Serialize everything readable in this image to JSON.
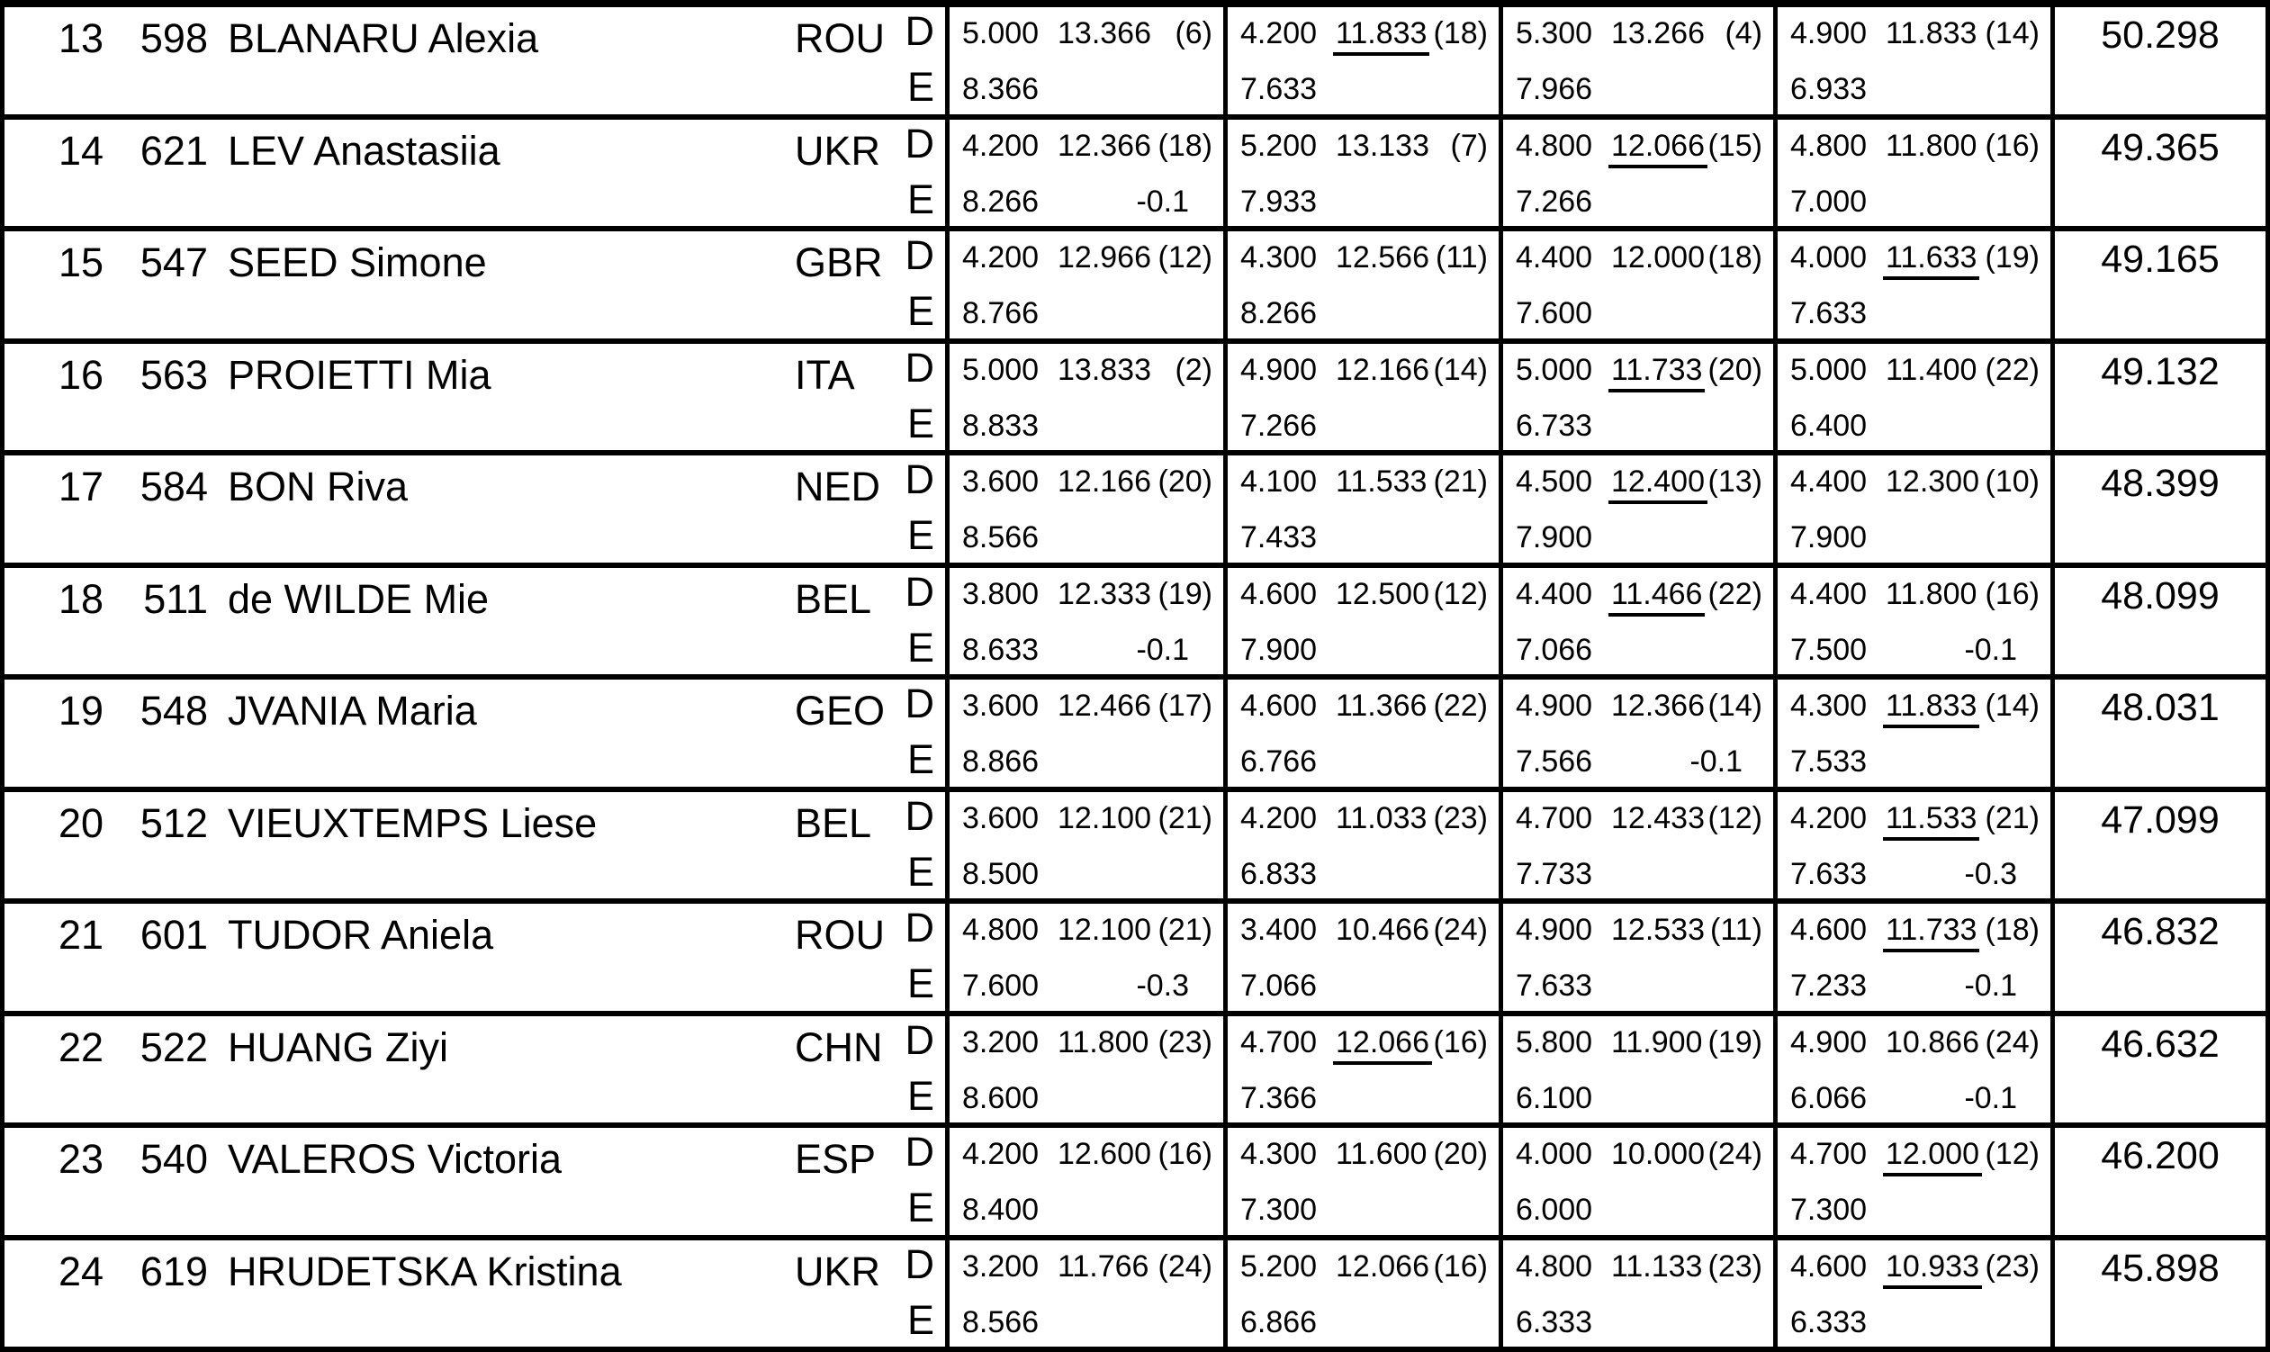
{
  "labels": {
    "d": "D",
    "e": "E"
  },
  "table": {
    "rows": [
      {
        "rank": "13",
        "bib": "598",
        "name": "BLANARU Alexia",
        "noc": "ROU",
        "total": "50.298",
        "apparatus": [
          {
            "d": "5.000",
            "score": "13.366",
            "rank_paren": "(6)",
            "e": "8.366",
            "penalty": "",
            "underlined": false
          },
          {
            "d": "4.200",
            "score": "11.833",
            "rank_paren": "(18)",
            "e": "7.633",
            "penalty": "",
            "underlined": true
          },
          {
            "d": "5.300",
            "score": "13.266",
            "rank_paren": "(4)",
            "e": "7.966",
            "penalty": "",
            "underlined": false
          },
          {
            "d": "4.900",
            "score": "11.833",
            "rank_paren": "(14)",
            "e": "6.933",
            "penalty": "",
            "underlined": false
          }
        ]
      },
      {
        "rank": "14",
        "bib": "621",
        "name": "LEV Anastasiia",
        "noc": "UKR",
        "total": "49.365",
        "apparatus": [
          {
            "d": "4.200",
            "score": "12.366",
            "rank_paren": "(18)",
            "e": "8.266",
            "penalty": "-0.1",
            "underlined": false
          },
          {
            "d": "5.200",
            "score": "13.133",
            "rank_paren": "(7)",
            "e": "7.933",
            "penalty": "",
            "underlined": false
          },
          {
            "d": "4.800",
            "score": "12.066",
            "rank_paren": "(15)",
            "e": "7.266",
            "penalty": "",
            "underlined": true
          },
          {
            "d": "4.800",
            "score": "11.800",
            "rank_paren": "(16)",
            "e": "7.000",
            "penalty": "",
            "underlined": false
          }
        ]
      },
      {
        "rank": "15",
        "bib": "547",
        "name": "SEED Simone",
        "noc": "GBR",
        "total": "49.165",
        "apparatus": [
          {
            "d": "4.200",
            "score": "12.966",
            "rank_paren": "(12)",
            "e": "8.766",
            "penalty": "",
            "underlined": false
          },
          {
            "d": "4.300",
            "score": "12.566",
            "rank_paren": "(11)",
            "e": "8.266",
            "penalty": "",
            "underlined": false
          },
          {
            "d": "4.400",
            "score": "12.000",
            "rank_paren": "(18)",
            "e": "7.600",
            "penalty": "",
            "underlined": false
          },
          {
            "d": "4.000",
            "score": "11.633",
            "rank_paren": "(19)",
            "e": "7.633",
            "penalty": "",
            "underlined": true
          }
        ]
      },
      {
        "rank": "16",
        "bib": "563",
        "name": "PROIETTI Mia",
        "noc": "ITA",
        "total": "49.132",
        "apparatus": [
          {
            "d": "5.000",
            "score": "13.833",
            "rank_paren": "(2)",
            "e": "8.833",
            "penalty": "",
            "underlined": false
          },
          {
            "d": "4.900",
            "score": "12.166",
            "rank_paren": "(14)",
            "e": "7.266",
            "penalty": "",
            "underlined": false
          },
          {
            "d": "5.000",
            "score": "11.733",
            "rank_paren": "(20)",
            "e": "6.733",
            "penalty": "",
            "underlined": true
          },
          {
            "d": "5.000",
            "score": "11.400",
            "rank_paren": "(22)",
            "e": "6.400",
            "penalty": "",
            "underlined": false
          }
        ]
      },
      {
        "rank": "17",
        "bib": "584",
        "name": "BON Riva",
        "noc": "NED",
        "total": "48.399",
        "apparatus": [
          {
            "d": "3.600",
            "score": "12.166",
            "rank_paren": "(20)",
            "e": "8.566",
            "penalty": "",
            "underlined": false
          },
          {
            "d": "4.100",
            "score": "11.533",
            "rank_paren": "(21)",
            "e": "7.433",
            "penalty": "",
            "underlined": false
          },
          {
            "d": "4.500",
            "score": "12.400",
            "rank_paren": "(13)",
            "e": "7.900",
            "penalty": "",
            "underlined": true
          },
          {
            "d": "4.400",
            "score": "12.300",
            "rank_paren": "(10)",
            "e": "7.900",
            "penalty": "",
            "underlined": false
          }
        ]
      },
      {
        "rank": "18",
        "bib": "511",
        "name": "de WILDE Mie",
        "noc": "BEL",
        "total": "48.099",
        "apparatus": [
          {
            "d": "3.800",
            "score": "12.333",
            "rank_paren": "(19)",
            "e": "8.633",
            "penalty": "-0.1",
            "underlined": false
          },
          {
            "d": "4.600",
            "score": "12.500",
            "rank_paren": "(12)",
            "e": "7.900",
            "penalty": "",
            "underlined": false
          },
          {
            "d": "4.400",
            "score": "11.466",
            "rank_paren": "(22)",
            "e": "7.066",
            "penalty": "",
            "underlined": true
          },
          {
            "d": "4.400",
            "score": "11.800",
            "rank_paren": "(16)",
            "e": "7.500",
            "penalty": "-0.1",
            "underlined": false
          }
        ]
      },
      {
        "rank": "19",
        "bib": "548",
        "name": "JVANIA Maria",
        "noc": "GEO",
        "total": "48.031",
        "apparatus": [
          {
            "d": "3.600",
            "score": "12.466",
            "rank_paren": "(17)",
            "e": "8.866",
            "penalty": "",
            "underlined": false
          },
          {
            "d": "4.600",
            "score": "11.366",
            "rank_paren": "(22)",
            "e": "6.766",
            "penalty": "",
            "underlined": false
          },
          {
            "d": "4.900",
            "score": "12.366",
            "rank_paren": "(14)",
            "e": "7.566",
            "penalty": "-0.1",
            "underlined": false
          },
          {
            "d": "4.300",
            "score": "11.833",
            "rank_paren": "(14)",
            "e": "7.533",
            "penalty": "",
            "underlined": true
          }
        ]
      },
      {
        "rank": "20",
        "bib": "512",
        "name": "VIEUXTEMPS Liese",
        "noc": "BEL",
        "total": "47.099",
        "apparatus": [
          {
            "d": "3.600",
            "score": "12.100",
            "rank_paren": "(21)",
            "e": "8.500",
            "penalty": "",
            "underlined": false
          },
          {
            "d": "4.200",
            "score": "11.033",
            "rank_paren": "(23)",
            "e": "6.833",
            "penalty": "",
            "underlined": false
          },
          {
            "d": "4.700",
            "score": "12.433",
            "rank_paren": "(12)",
            "e": "7.733",
            "penalty": "",
            "underlined": false
          },
          {
            "d": "4.200",
            "score": "11.533",
            "rank_paren": "(21)",
            "e": "7.633",
            "penalty": "-0.3",
            "underlined": true
          }
        ]
      },
      {
        "rank": "21",
        "bib": "601",
        "name": "TUDOR Aniela",
        "noc": "ROU",
        "total": "46.832",
        "apparatus": [
          {
            "d": "4.800",
            "score": "12.100",
            "rank_paren": "(21)",
            "e": "7.600",
            "penalty": "-0.3",
            "underlined": false
          },
          {
            "d": "3.400",
            "score": "10.466",
            "rank_paren": "(24)",
            "e": "7.066",
            "penalty": "",
            "underlined": false
          },
          {
            "d": "4.900",
            "score": "12.533",
            "rank_paren": "(11)",
            "e": "7.633",
            "penalty": "",
            "underlined": false
          },
          {
            "d": "4.600",
            "score": "11.733",
            "rank_paren": "(18)",
            "e": "7.233",
            "penalty": "-0.1",
            "underlined": true
          }
        ]
      },
      {
        "rank": "22",
        "bib": "522",
        "name": "HUANG Ziyi",
        "noc": "CHN",
        "total": "46.632",
        "apparatus": [
          {
            "d": "3.200",
            "score": "11.800",
            "rank_paren": "(23)",
            "e": "8.600",
            "penalty": "",
            "underlined": false
          },
          {
            "d": "4.700",
            "score": "12.066",
            "rank_paren": "(16)",
            "e": "7.366",
            "penalty": "",
            "underlined": true
          },
          {
            "d": "5.800",
            "score": "11.900",
            "rank_paren": "(19)",
            "e": "6.100",
            "penalty": "",
            "underlined": false
          },
          {
            "d": "4.900",
            "score": "10.866",
            "rank_paren": "(24)",
            "e": "6.066",
            "penalty": "-0.1",
            "underlined": false
          }
        ]
      },
      {
        "rank": "23",
        "bib": "540",
        "name": "VALEROS Victoria",
        "noc": "ESP",
        "total": "46.200",
        "apparatus": [
          {
            "d": "4.200",
            "score": "12.600",
            "rank_paren": "(16)",
            "e": "8.400",
            "penalty": "",
            "underlined": false
          },
          {
            "d": "4.300",
            "score": "11.600",
            "rank_paren": "(20)",
            "e": "7.300",
            "penalty": "",
            "underlined": false
          },
          {
            "d": "4.000",
            "score": "10.000",
            "rank_paren": "(24)",
            "e": "6.000",
            "penalty": "",
            "underlined": false
          },
          {
            "d": "4.700",
            "score": "12.000",
            "rank_paren": "(12)",
            "e": "7.300",
            "penalty": "",
            "underlined": true
          }
        ]
      },
      {
        "rank": "24",
        "bib": "619",
        "name": "HRUDETSKA Kristina",
        "noc": "UKR",
        "total": "45.898",
        "apparatus": [
          {
            "d": "3.200",
            "score": "11.766",
            "rank_paren": "(24)",
            "e": "8.566",
            "penalty": "",
            "underlined": false
          },
          {
            "d": "5.200",
            "score": "12.066",
            "rank_paren": "(16)",
            "e": "6.866",
            "penalty": "",
            "underlined": false
          },
          {
            "d": "4.800",
            "score": "11.133",
            "rank_paren": "(23)",
            "e": "6.333",
            "penalty": "",
            "underlined": false
          },
          {
            "d": "4.600",
            "score": "10.933",
            "rank_paren": "(23)",
            "e": "6.333",
            "penalty": "",
            "underlined": true
          }
        ]
      }
    ]
  }
}
